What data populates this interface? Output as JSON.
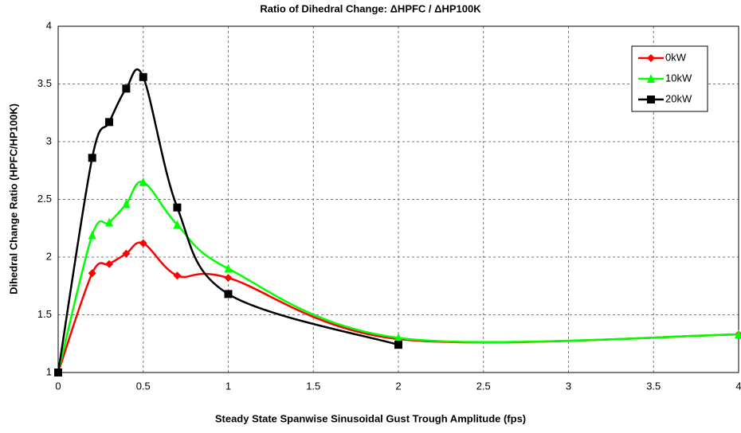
{
  "chart_data": {
    "type": "line",
    "title": "Ratio of Dihedral Change: ΔHPFC / ΔHP100K",
    "x_label": "Steady State Spanwise Sinusoidal Gust Trough Amplitude (fps)",
    "y_label": "Dihedral Change Ratio (HPFC/HP100K)",
    "xlim": [
      0,
      4
    ],
    "xticks": [
      0,
      0.5,
      1,
      1.5,
      2,
      2.5,
      3,
      3.5,
      4
    ],
    "ylim": [
      1,
      4
    ],
    "yticks": [
      1,
      1.5,
      2,
      2.5,
      3,
      3.5,
      4
    ],
    "grid": true,
    "smooth": true,
    "legend": "top-right",
    "series": [
      {
        "name": "0kW",
        "color": "#ff0000",
        "marker": "diamond",
        "x": [
          0,
          0.2,
          0.3,
          0.4,
          0.5,
          0.7,
          1,
          2,
          4
        ],
        "values": [
          1,
          1.86,
          1.94,
          2.03,
          2.12,
          1.84,
          1.82,
          1.29,
          1.33
        ]
      },
      {
        "name": "10kW",
        "color": "#00ff00",
        "marker": "triangle",
        "x": [
          0,
          0.2,
          0.3,
          0.4,
          0.5,
          0.7,
          1,
          2,
          4
        ],
        "values": [
          1,
          2.19,
          2.3,
          2.46,
          2.65,
          2.28,
          1.9,
          1.3,
          1.33
        ]
      },
      {
        "name": "20kW",
        "color": "#000000",
        "marker": "square",
        "x": [
          0,
          0.2,
          0.3,
          0.4,
          0.5,
          0.7,
          1,
          2
        ],
        "values": [
          1,
          2.86,
          3.17,
          3.46,
          3.56,
          2.43,
          1.68,
          1.24
        ]
      }
    ]
  }
}
